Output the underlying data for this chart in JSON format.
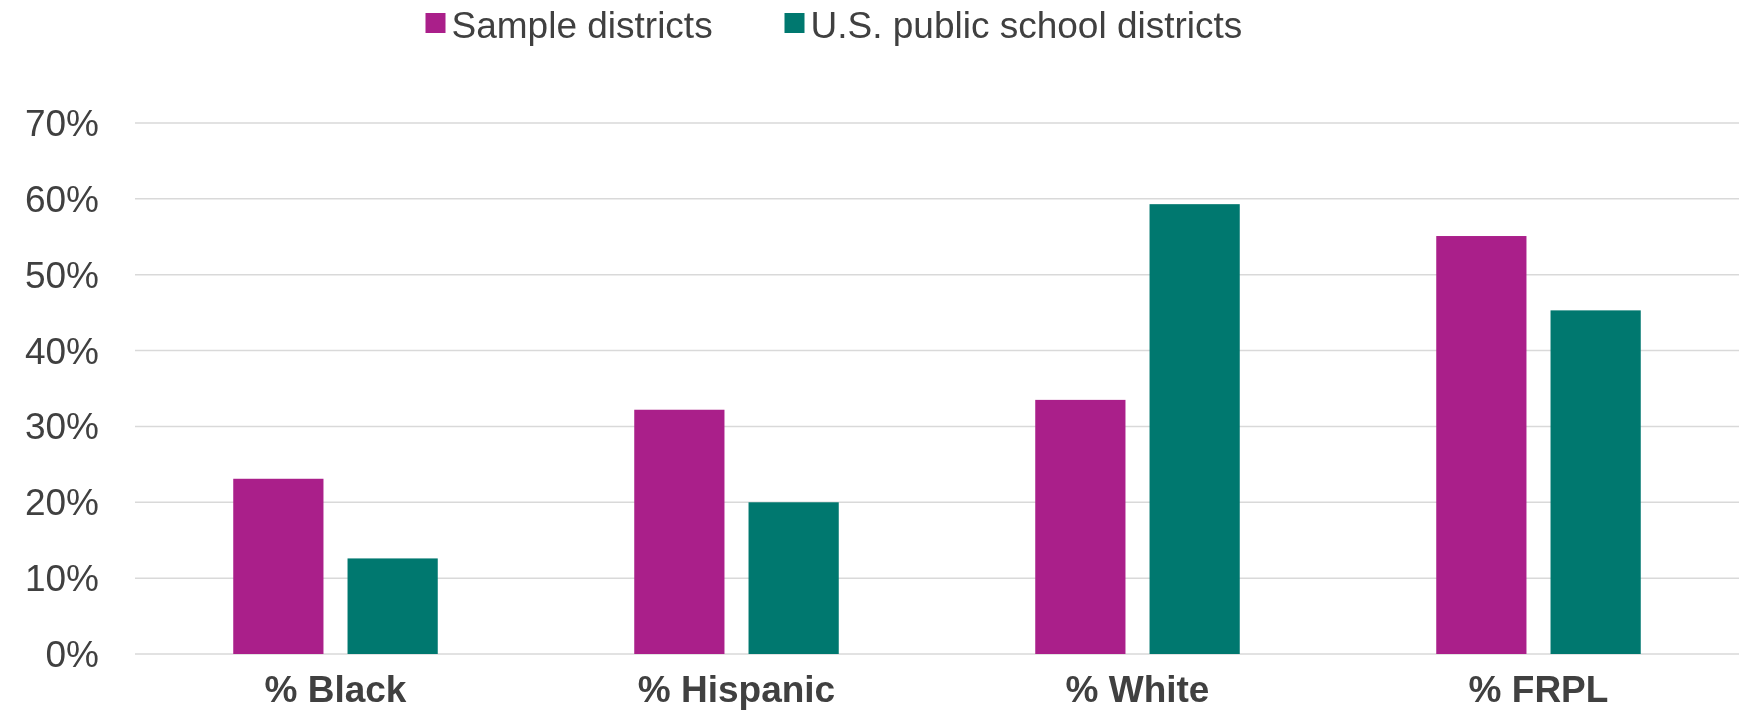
{
  "chart_data": {
    "type": "bar",
    "categories": [
      "% Black",
      "% Hispanic",
      "% White",
      "% FRPL"
    ],
    "series": [
      {
        "name": "Sample districts",
        "color": "#aa1f8a",
        "values": [
          23.1,
          32.2,
          33.5,
          55.1
        ]
      },
      {
        "name": "U.S. public school districts",
        "color": "#00786f",
        "values": [
          12.6,
          20.0,
          59.3,
          45.3
        ]
      }
    ],
    "ylim": [
      0,
      70
    ],
    "yticks": [
      {
        "value": 0,
        "label": "0%"
      },
      {
        "value": 10,
        "label": "10%"
      },
      {
        "value": 20,
        "label": "20%"
      },
      {
        "value": 30,
        "label": "30%"
      },
      {
        "value": 40,
        "label": "40%"
      },
      {
        "value": 50,
        "label": "50%"
      },
      {
        "value": 60,
        "label": "60%"
      },
      {
        "value": 70,
        "label": "70%"
      }
    ],
    "grid": "y",
    "legend": "top"
  }
}
